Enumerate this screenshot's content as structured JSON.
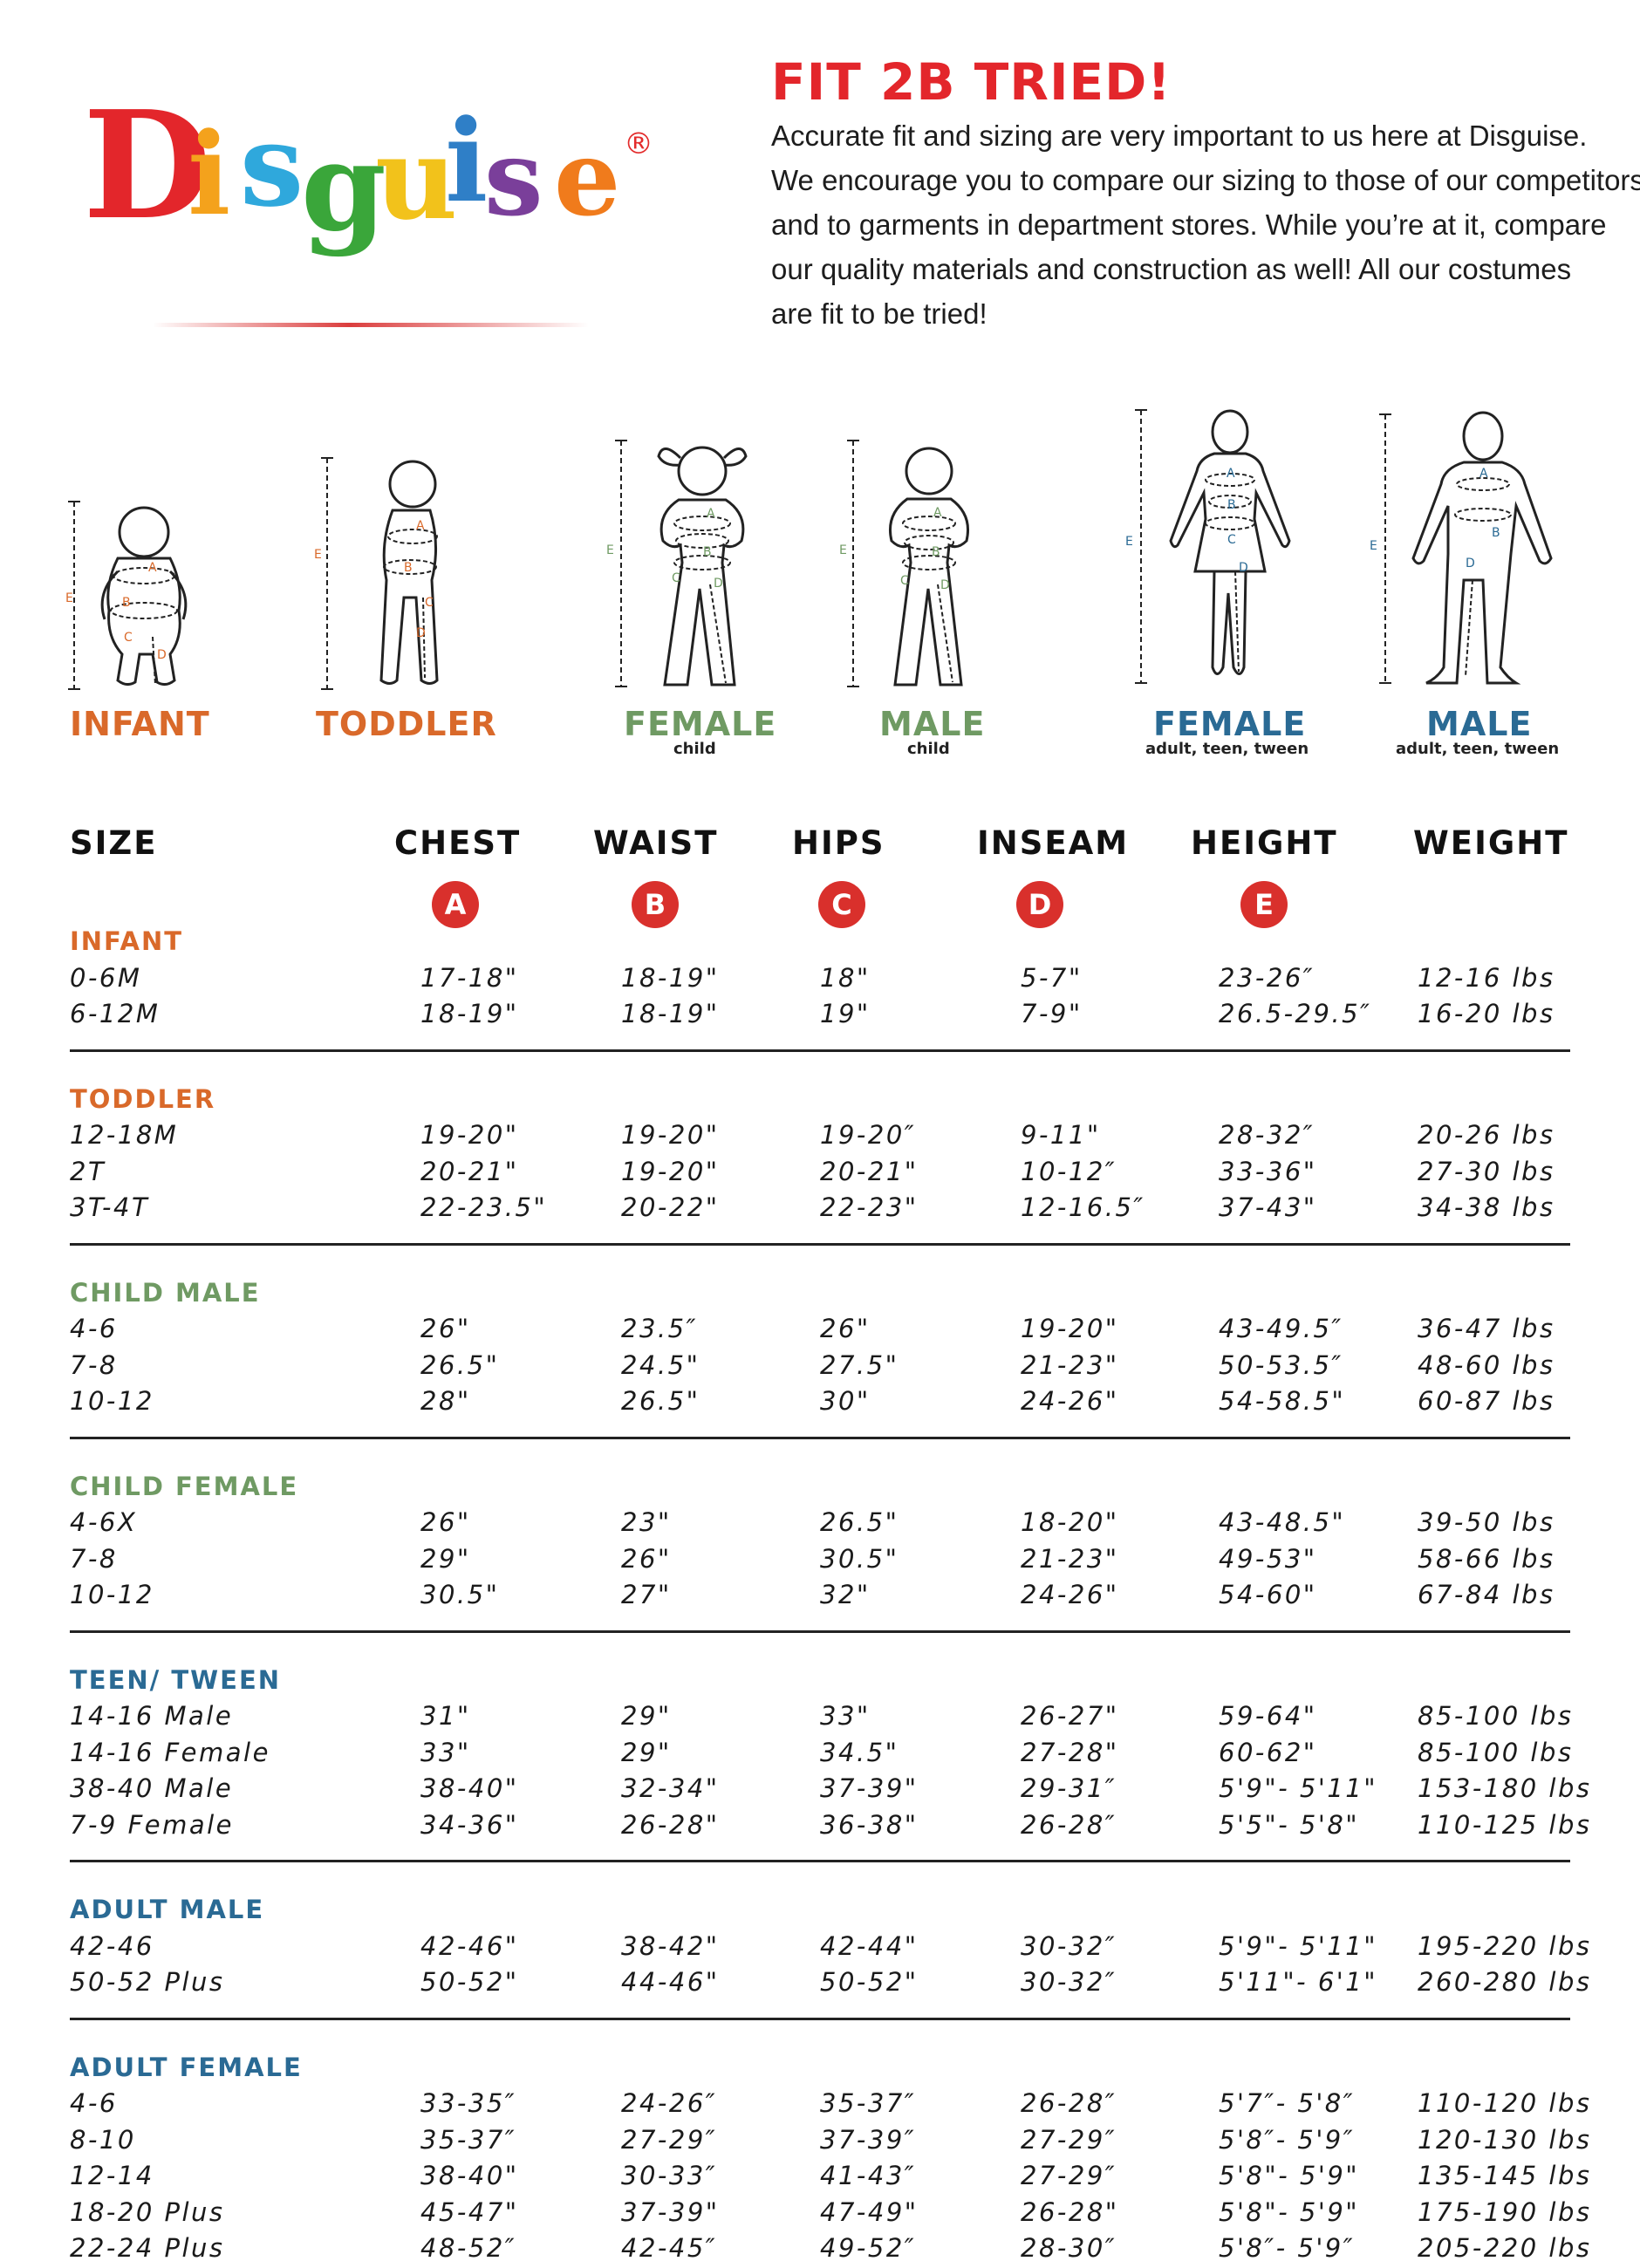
{
  "brand": {
    "name": "Disguise",
    "letters": [
      {
        "ch": "D",
        "color": "#e3262b"
      },
      {
        "ch": "i",
        "color": "#f4a21c"
      },
      {
        "ch": "s",
        "color": "#2fa8dc"
      },
      {
        "ch": "g",
        "color": "#3aa63a"
      },
      {
        "ch": "u",
        "color": "#f2c21b"
      },
      {
        "ch": "i",
        "color": "#2f7fc7"
      },
      {
        "ch": "s",
        "color": "#7a3f9a"
      },
      {
        "ch": "e",
        "color": "#f07b1c"
      }
    ],
    "registered": "®"
  },
  "header": {
    "headline": "FIT 2B TRIED!",
    "intro_lines": [
      "Accurate fit and sizing are very important to us here at Disguise.",
      "We encourage you to compare our sizing to those of our competitors",
      "and to garments in department stores. While you’re at it, compare",
      "our quality materials and construction as well! All our costumes",
      "are fit to be tried!"
    ]
  },
  "figures": [
    {
      "label": "INFANT",
      "sub": "",
      "color": "#d9692a"
    },
    {
      "label": "TODDLER",
      "sub": "",
      "color": "#d9692a"
    },
    {
      "label": "FEMALE",
      "sub": "child",
      "color": "#6f9a63"
    },
    {
      "label": "MALE",
      "sub": "child",
      "color": "#6f9a63"
    },
    {
      "label": "FEMALE",
      "sub": "adult, teen, tween",
      "color": "#2a6a94"
    },
    {
      "label": "MALE",
      "sub": "adult, teen, tween",
      "color": "#2a6a94"
    }
  ],
  "figure_marks": {
    "a": "A",
    "b": "B",
    "c": "C",
    "d": "D",
    "e": "E"
  },
  "table": {
    "headers": [
      "SIZE",
      "CHEST",
      "WAIST",
      "HIPS",
      "INSEAM",
      "HEIGHT",
      "WEIGHT"
    ],
    "badges": [
      "A",
      "B",
      "C",
      "D",
      "E"
    ],
    "groups": [
      {
        "title": "INFANT",
        "color": "#d9692a",
        "rows": [
          [
            "0-6M",
            "17-18\"",
            "18-19\"",
            "18\"",
            "5-7\"",
            "23-26″",
            "12-16 lbs"
          ],
          [
            "6-12M",
            "18-19\"",
            "18-19\"",
            "19\"",
            "7-9\"",
            "26.5-29.5″",
            "16-20 lbs"
          ]
        ]
      },
      {
        "title": "TODDLER",
        "color": "#d9692a",
        "rows": [
          [
            "12-18M",
            "19-20\"",
            "19-20\"",
            "19-20″",
            "9-11\"",
            "28-32″",
            "20-26 lbs"
          ],
          [
            "2T",
            "20-21\"",
            "19-20\"",
            "20-21\"",
            "10-12″",
            "33-36\"",
            "27-30 lbs"
          ],
          [
            "3T-4T",
            "22-23.5\"",
            "20-22\"",
            "22-23\"",
            "12-16.5″",
            "37-43\"",
            "34-38 lbs"
          ]
        ]
      },
      {
        "title": "CHILD MALE",
        "color": "#6f9a63",
        "rows": [
          [
            "4-6",
            "26\"",
            "23.5″",
            "26\"",
            "19-20\"",
            "43-49.5″",
            "36-47 lbs"
          ],
          [
            "7-8",
            "26.5\"",
            "24.5\"",
            "27.5\"",
            "21-23\"",
            "50-53.5″",
            "48-60 lbs"
          ],
          [
            "10-12",
            "28\"",
            "26.5\"",
            "30\"",
            "24-26\"",
            "54-58.5\"",
            "60-87 lbs"
          ]
        ]
      },
      {
        "title": "CHILD FEMALE",
        "color": "#6f9a63",
        "rows": [
          [
            "4-6X",
            "26\"",
            "23\"",
            "26.5\"",
            "18-20\"",
            "43-48.5\"",
            "39-50 lbs"
          ],
          [
            "7-8",
            "29\"",
            "26\"",
            "30.5\"",
            "21-23\"",
            "49-53\"",
            "58-66 lbs"
          ],
          [
            "10-12",
            "30.5\"",
            "27\"",
            "32\"",
            "24-26\"",
            "54-60\"",
            "67-84 lbs"
          ]
        ]
      },
      {
        "title": "TEEN/ TWEEN",
        "color": "#2a6a94",
        "rows": [
          [
            "14-16 Male",
            "31\"",
            "29\"",
            "33\"",
            "26-27\"",
            "59-64\"",
            "85-100 lbs"
          ],
          [
            "14-16 Female",
            "33\"",
            "29\"",
            "34.5\"",
            "27-28\"",
            "60-62\"",
            "85-100 lbs"
          ],
          [
            "38-40 Male",
            "38-40\"",
            "32-34\"",
            "37-39\"",
            "29-31″",
            "5'9\"- 5'11\"",
            "153-180 lbs"
          ],
          [
            "7-9 Female",
            "34-36\"",
            "26-28\"",
            "36-38\"",
            "26-28″",
            "5'5\"- 5'8\"",
            "110-125 lbs"
          ]
        ]
      },
      {
        "title": "ADULT MALE",
        "color": "#2a6a94",
        "rows": [
          [
            "42-46",
            "42-46\"",
            "38-42\"",
            "42-44\"",
            "30-32″",
            "5'9\"- 5'11\"",
            "195-220 lbs"
          ],
          [
            "50-52 Plus",
            "50-52\"",
            "44-46\"",
            "50-52\"",
            "30-32″",
            "5'11\"- 6'1\"",
            "260-280 lbs"
          ]
        ]
      },
      {
        "title": "ADULT FEMALE",
        "color": "#2a6a94",
        "rows": [
          [
            "4-6",
            "33-35″",
            "24-26″",
            "35-37″",
            "26-28″",
            "5'7″- 5'8″",
            "110-120 lbs"
          ],
          [
            "8-10",
            "35-37″",
            "27-29″",
            "37-39″",
            "27-29″",
            "5'8″- 5'9″",
            "120-130 lbs"
          ],
          [
            "12-14",
            "38-40\"",
            "30-33″",
            "41-43″",
            "27-29″",
            "5'8\"- 5'9\"",
            "135-145 lbs"
          ],
          [
            "18-20 Plus",
            "45-47\"",
            "37-39\"",
            "47-49\"",
            "26-28\"",
            "5'8\"- 5'9\"",
            "175-190 lbs"
          ],
          [
            "22-24 Plus",
            "48-52″",
            "42-45″",
            "49-52″",
            "28-30″",
            "5'8″- 5'9″",
            "205-220 lbs"
          ]
        ]
      }
    ]
  }
}
